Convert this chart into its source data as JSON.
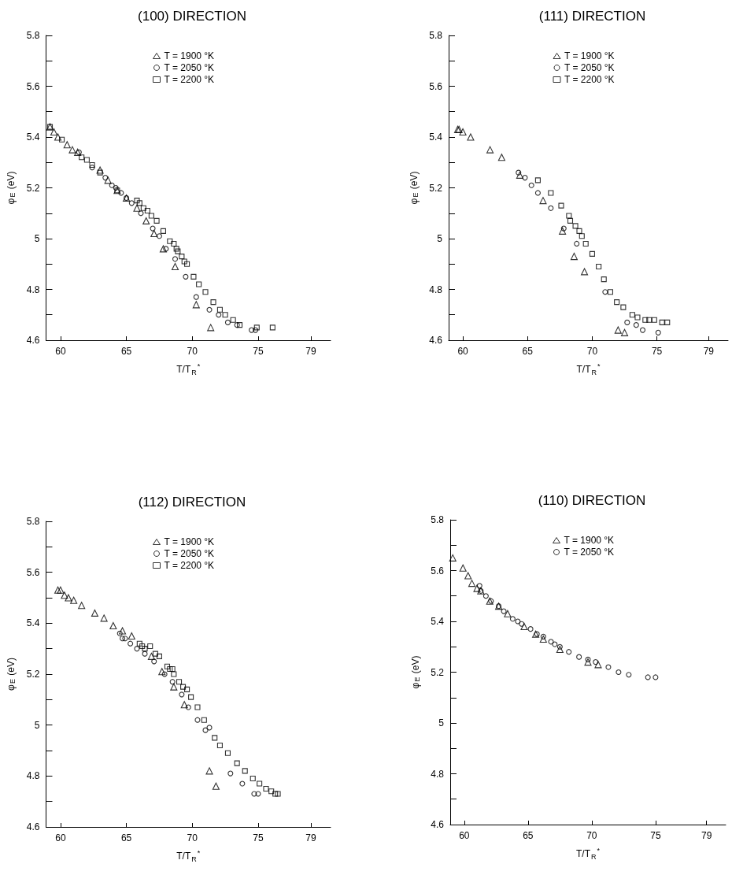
{
  "chart_data": [
    {
      "type": "scatter",
      "title": "(100) DIRECTION",
      "xlabel": "T/T$_{R}$$^{*}$",
      "ylabel": "φ$_{E}$ (eV)",
      "xlim": [
        58.9,
        80.5
      ],
      "xticks": [
        60,
        65,
        70,
        75,
        79
      ],
      "ylim": [
        4.6,
        5.8
      ],
      "yticks": [
        4.6,
        {
          "value": 4.7,
          "label": null
        },
        4.8,
        {
          "value": 4.9,
          "label": null
        },
        5.0,
        {
          "value": 5.1,
          "label": null
        },
        5.2,
        {
          "value": 5.3,
          "label": null
        },
        5.4,
        {
          "value": 5.5,
          "label": null
        },
        5.6,
        {
          "value": 5.7,
          "label": null
        },
        5.8
      ],
      "grid": false,
      "legend": "top",
      "series": [
        {
          "name": "T = 1900 °K",
          "color": "#000000",
          "marker": "triangle",
          "x": [
            59.2,
            59.5,
            59.8,
            60.5,
            60.9,
            61.3,
            63.0,
            63.6,
            64.3,
            65.0,
            65.8,
            66.5,
            67.1,
            67.8,
            68.7,
            70.3,
            71.4
          ],
          "values": [
            5.44,
            5.42,
            5.4,
            5.37,
            5.35,
            5.34,
            5.27,
            5.23,
            5.19,
            5.16,
            5.12,
            5.07,
            5.02,
            4.96,
            4.89,
            4.74,
            4.65
          ]
        },
        {
          "name": "T = 2050 °K",
          "color": "#000000",
          "marker": "circle",
          "x": [
            61.4,
            62.4,
            63.4,
            63.9,
            64.2,
            64.6,
            65.0,
            65.4,
            66.1,
            67.0,
            67.5,
            68.0,
            68.7,
            69.5,
            70.3,
            71.3,
            72.0,
            72.7,
            73.4,
            74.5,
            74.8
          ],
          "values": [
            5.34,
            5.28,
            5.24,
            5.21,
            5.2,
            5.18,
            5.16,
            5.14,
            5.1,
            5.04,
            5.01,
            4.96,
            4.92,
            4.85,
            4.77,
            4.72,
            4.7,
            4.67,
            4.66,
            4.64,
            4.64
          ]
        },
        {
          "name": "T = 2200 °K",
          "color": "#000000",
          "marker": "square",
          "x": [
            59.2,
            60.1,
            61.6,
            62.0,
            62.4,
            63.0,
            64.3,
            65.8,
            66.0,
            66.3,
            66.6,
            66.9,
            67.3,
            67.8,
            68.3,
            68.6,
            68.8,
            68.9,
            69.2,
            69.4,
            69.6,
            70.1,
            70.5,
            71.0,
            71.6,
            72.1,
            72.5,
            73.1,
            73.6,
            74.9,
            76.1
          ],
          "values": [
            5.44,
            5.39,
            5.32,
            5.31,
            5.29,
            5.26,
            5.19,
            5.15,
            5.14,
            5.12,
            5.11,
            5.09,
            5.07,
            5.03,
            4.99,
            4.98,
            4.96,
            4.95,
            4.93,
            4.91,
            4.9,
            4.85,
            4.82,
            4.79,
            4.75,
            4.72,
            4.7,
            4.68,
            4.66,
            4.65,
            4.65
          ]
        }
      ]
    },
    {
      "type": "scatter",
      "title": "(111) DIRECTION",
      "xlabel": "T/T$_{R}$$^{*}$",
      "ylabel": "φ$_{E}$ (eV)",
      "xlim": [
        58.9,
        80.5
      ],
      "xticks": [
        60,
        65,
        70,
        75,
        79
      ],
      "ylim": [
        4.6,
        5.8
      ],
      "yticks": [
        4.6,
        {
          "value": 4.7,
          "label": null
        },
        4.8,
        {
          "value": 4.9,
          "label": null
        },
        5.0,
        {
          "value": 5.1,
          "label": null
        },
        5.2,
        {
          "value": 5.3,
          "label": null
        },
        5.4,
        {
          "value": 5.5,
          "label": null
        },
        5.6,
        {
          "value": 5.7,
          "label": null
        },
        5.8
      ],
      "grid": false,
      "legend": "top",
      "series": [
        {
          "name": "T = 1900 °K",
          "color": "#000000",
          "marker": "triangle",
          "x": [
            59.6,
            59.7,
            60.0,
            60.6,
            62.1,
            63.0,
            64.4,
            66.2,
            67.7,
            68.6,
            69.4,
            72.0,
            72.5
          ],
          "values": [
            5.43,
            5.43,
            5.42,
            5.4,
            5.35,
            5.32,
            5.25,
            5.15,
            5.03,
            4.93,
            4.87,
            4.64,
            4.63
          ]
        },
        {
          "name": "T = 2050 °K",
          "color": "#000000",
          "marker": "circle",
          "x": [
            64.3,
            64.8,
            65.3,
            65.8,
            66.8,
            67.8,
            68.8,
            71.0,
            72.7,
            73.4,
            73.9,
            75.1
          ],
          "values": [
            5.26,
            5.24,
            5.21,
            5.18,
            5.12,
            5.04,
            4.98,
            4.79,
            4.67,
            4.66,
            4.64,
            4.63
          ]
        },
        {
          "name": "T = 2200 °K",
          "color": "#000000",
          "marker": "square",
          "x": [
            65.8,
            66.8,
            67.6,
            68.2,
            68.3,
            68.7,
            69.0,
            69.2,
            69.5,
            70.0,
            70.5,
            70.9,
            71.4,
            71.9,
            72.4,
            73.1,
            73.5,
            74.1,
            74.4,
            74.8,
            75.4,
            75.8
          ],
          "values": [
            5.23,
            5.18,
            5.13,
            5.09,
            5.07,
            5.05,
            5.03,
            5.01,
            4.98,
            4.94,
            4.89,
            4.84,
            4.79,
            4.75,
            4.73,
            4.7,
            4.69,
            4.68,
            4.68,
            4.68,
            4.67,
            4.67
          ]
        }
      ]
    },
    {
      "type": "scatter",
      "title": "(112) DIRECTION",
      "xlabel": "T/T$_{R}$$^{*}$",
      "ylabel": "φ$_{E}$ (eV)",
      "xlim": [
        58.9,
        80.5
      ],
      "xticks": [
        60,
        65,
        70,
        75,
        79
      ],
      "ylim": [
        4.6,
        5.8
      ],
      "yticks": [
        4.6,
        {
          "value": 4.7,
          "label": null
        },
        4.8,
        {
          "value": 4.9,
          "label": null
        },
        5.0,
        {
          "value": 5.1,
          "label": null
        },
        5.2,
        {
          "value": 5.3,
          "label": null
        },
        5.4,
        {
          "value": 5.5,
          "label": null
        },
        5.6,
        {
          "value": 5.7,
          "label": null
        },
        5.8
      ],
      "grid": false,
      "legend": "top",
      "series": [
        {
          "name": "T = 1900 °K",
          "color": "#000000",
          "marker": "triangle",
          "x": [
            59.8,
            60.0,
            60.3,
            60.6,
            61.0,
            61.6,
            62.6,
            63.3,
            64.0,
            64.7,
            65.4,
            66.9,
            67.7,
            68.6,
            69.4,
            71.3,
            71.8
          ],
          "values": [
            5.53,
            5.53,
            5.51,
            5.5,
            5.49,
            5.47,
            5.44,
            5.42,
            5.39,
            5.37,
            5.35,
            5.27,
            5.21,
            5.15,
            5.08,
            4.82,
            4.76
          ]
        },
        {
          "name": "T = 2050 °K",
          "color": "#000000",
          "marker": "circle",
          "x": [
            64.5,
            64.7,
            64.9,
            65.3,
            65.8,
            66.4,
            67.1,
            67.9,
            68.5,
            69.2,
            69.7,
            70.4,
            71.0,
            71.3,
            72.9,
            73.8,
            74.7,
            75.0
          ],
          "values": [
            5.36,
            5.34,
            5.34,
            5.32,
            5.3,
            5.28,
            5.25,
            5.2,
            5.17,
            5.12,
            5.07,
            5.02,
            4.98,
            4.99,
            4.81,
            4.77,
            4.73,
            4.73
          ]
        },
        {
          "name": "T = 2200 °K",
          "color": "#000000",
          "marker": "square",
          "x": [
            66.0,
            66.2,
            66.4,
            66.8,
            67.2,
            67.5,
            68.1,
            68.3,
            68.5,
            68.6,
            69.0,
            69.3,
            69.6,
            69.9,
            70.4,
            70.9,
            71.7,
            72.1,
            72.7,
            73.4,
            74.0,
            74.6,
            75.1,
            75.6,
            76.0,
            76.3,
            76.5
          ],
          "values": [
            5.32,
            5.31,
            5.3,
            5.31,
            5.28,
            5.27,
            5.23,
            5.22,
            5.22,
            5.2,
            5.17,
            5.15,
            5.14,
            5.11,
            5.07,
            5.02,
            4.95,
            4.92,
            4.89,
            4.85,
            4.82,
            4.79,
            4.77,
            4.75,
            4.74,
            4.73,
            4.73
          ]
        }
      ]
    },
    {
      "type": "scatter",
      "title": "(110) DIRECTION",
      "xlabel": "T/T$_{R}$$^{*}$",
      "ylabel": "φ$_{E}$ (eV)",
      "xlim": [
        58.9,
        80.5
      ],
      "xticks": [
        60,
        65,
        70,
        75,
        79
      ],
      "ylim": [
        4.6,
        5.8
      ],
      "yticks": [
        4.6,
        {
          "value": 4.7,
          "label": null
        },
        4.8,
        {
          "value": 4.9,
          "label": null
        },
        5.0,
        {
          "value": 5.1,
          "label": null
        },
        5.2,
        {
          "value": 5.3,
          "label": null
        },
        5.4,
        {
          "value": 5.5,
          "label": null
        },
        5.6,
        {
          "value": 5.7,
          "label": null
        },
        5.8
      ],
      "grid": false,
      "legend": "top",
      "series": [
        {
          "name": "T = 1900 °K",
          "color": "#000000",
          "marker": "triangle",
          "x": [
            59.1,
            59.9,
            60.3,
            60.6,
            61.0,
            61.3,
            62.0,
            62.7,
            63.4,
            64.7,
            65.6,
            66.2,
            67.5,
            69.7,
            70.5
          ],
          "values": [
            5.65,
            5.61,
            5.58,
            5.55,
            5.53,
            5.52,
            5.48,
            5.46,
            5.43,
            5.38,
            5.35,
            5.33,
            5.29,
            5.24,
            5.23
          ]
        },
        {
          "name": "T = 2050 °K",
          "color": "#000000",
          "marker": "circle",
          "x": [
            61.2,
            61.3,
            61.7,
            62.1,
            62.7,
            63.1,
            63.8,
            64.2,
            64.5,
            65.2,
            65.7,
            66.2,
            66.8,
            67.1,
            67.5,
            68.2,
            69.0,
            69.7,
            70.3,
            71.3,
            72.1,
            72.9,
            74.4,
            75.0
          ],
          "values": [
            5.54,
            5.52,
            5.5,
            5.48,
            5.46,
            5.44,
            5.41,
            5.4,
            5.39,
            5.37,
            5.35,
            5.34,
            5.32,
            5.31,
            5.3,
            5.28,
            5.26,
            5.25,
            5.24,
            5.22,
            5.2,
            5.19,
            5.18,
            5.18
          ]
        }
      ]
    }
  ]
}
